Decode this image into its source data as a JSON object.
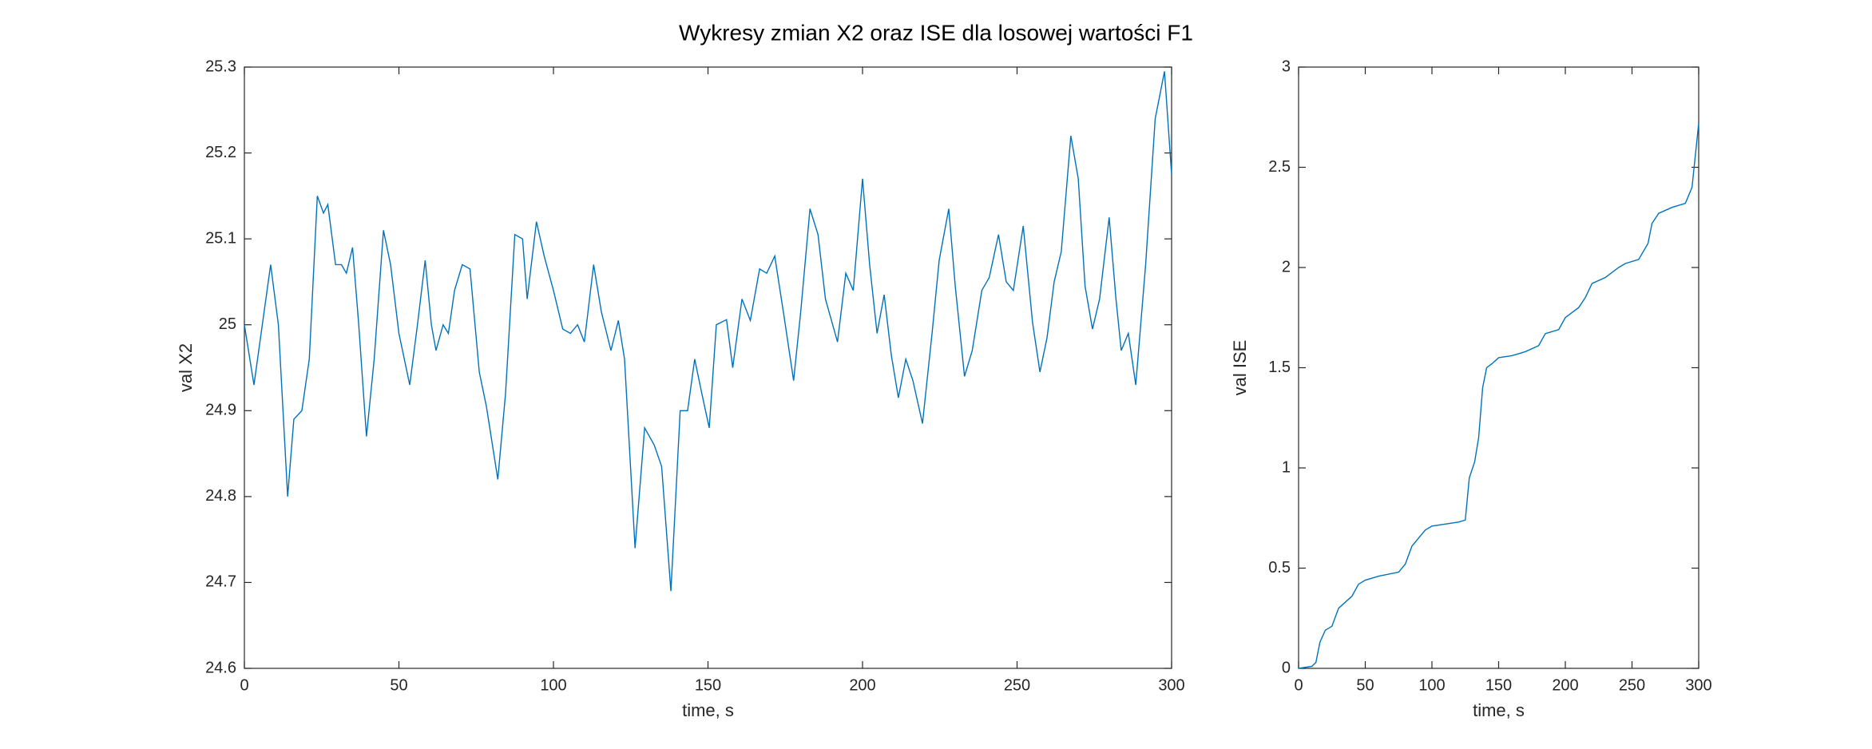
{
  "title": "Wykresy zmian X2 oraz ISE dla losowej wartości F1",
  "chart_data": [
    {
      "type": "line",
      "xlabel": "time, s",
      "ylabel": "val X2",
      "color": "#0072bd",
      "x": [
        0,
        3.1,
        8.5,
        11,
        14,
        16,
        18.6,
        21,
        23.6,
        25.6,
        27,
        29.5,
        31.4,
        33,
        35,
        37,
        39.5,
        42,
        45,
        47.3,
        50,
        53.5,
        56,
        58.5,
        60.5,
        62,
        64.3,
        66,
        68,
        70.5,
        73,
        76,
        78.3,
        82,
        84.5,
        87.5,
        90,
        91.5,
        94.5,
        97,
        100,
        103,
        105.5,
        107.8,
        110,
        113,
        115.5,
        118.6,
        121,
        123,
        126.4,
        129.5,
        132.6,
        135,
        138,
        141,
        143.4,
        145.7,
        148,
        150.4,
        152.7,
        156,
        158,
        161,
        163.7,
        166.7,
        169,
        171.6,
        174.6,
        177.7,
        180,
        183,
        185.6,
        188,
        191.9,
        194.6,
        197,
        200,
        202.3,
        204.7,
        207,
        209.3,
        211.6,
        214,
        216.3,
        219.4,
        222.5,
        224.8,
        227.9,
        230,
        233,
        235.5,
        238.6,
        241,
        244,
        246.5,
        248.8,
        252,
        255,
        257.4,
        259.7,
        262,
        264.3,
        267.4,
        269.8,
        272,
        274.4,
        276.7,
        279.8,
        282,
        283.7,
        286,
        288.4,
        291.6,
        294.7,
        297.7,
        300
      ],
      "values": [
        25.0,
        24.93,
        25.07,
        25.0,
        24.8,
        24.89,
        24.9,
        24.96,
        25.15,
        25.13,
        25.14,
        25.07,
        25.07,
        25.06,
        25.09,
        25.0,
        24.87,
        24.96,
        25.11,
        25.07,
        24.99,
        24.93,
        25.0,
        25.075,
        25.0,
        24.97,
        25.0,
        24.99,
        25.04,
        25.07,
        25.065,
        24.945,
        24.905,
        24.82,
        24.92,
        25.105,
        25.1,
        25.03,
        25.12,
        25.08,
        25.04,
        24.995,
        24.99,
        25.0,
        24.98,
        25.07,
        25.015,
        24.97,
        25.005,
        24.96,
        24.74,
        24.88,
        24.86,
        24.835,
        24.69,
        24.9,
        24.9,
        24.96,
        24.92,
        24.88,
        25.0,
        25.006,
        24.95,
        25.03,
        25.005,
        25.065,
        25.06,
        25.08,
        25.01,
        24.935,
        25.015,
        25.135,
        25.105,
        25.03,
        24.98,
        25.06,
        25.04,
        25.17,
        25.07,
        24.99,
        25.035,
        24.965,
        24.915,
        24.96,
        24.935,
        24.885,
        24.99,
        25.075,
        25.135,
        25.045,
        24.94,
        24.97,
        25.04,
        25.055,
        25.105,
        25.05,
        25.04,
        25.115,
        25.003,
        24.945,
        24.985,
        25.05,
        25.085,
        25.22,
        25.17,
        25.045,
        24.995,
        25.03,
        25.125,
        25.03,
        24.97,
        24.99,
        24.93,
        25.07,
        25.24,
        25.295,
        25.175
      ],
      "xlim": [
        0,
        300
      ],
      "xticks": [
        0,
        50,
        100,
        150,
        200,
        250,
        300
      ],
      "ylim": [
        24.6,
        25.3
      ],
      "yticks": [
        24.6,
        24.7,
        24.8,
        24.9,
        25,
        25.1,
        25.2,
        25.3
      ]
    },
    {
      "type": "line",
      "xlabel": "time, s",
      "ylabel": "val ISE",
      "color": "#0072bd",
      "x": [
        0,
        10,
        13,
        16,
        20,
        25,
        30,
        35,
        40,
        45,
        50,
        60,
        75,
        80,
        85,
        90,
        95,
        100,
        110,
        120,
        125,
        128,
        132,
        135,
        138,
        141,
        145,
        150,
        160,
        170,
        180,
        185,
        195,
        200,
        210,
        215,
        220,
        230,
        240,
        245,
        255,
        262,
        265,
        270,
        280,
        290,
        295,
        300
      ],
      "values": [
        0,
        0.01,
        0.03,
        0.13,
        0.19,
        0.21,
        0.3,
        0.33,
        0.36,
        0.42,
        0.44,
        0.46,
        0.48,
        0.52,
        0.61,
        0.65,
        0.69,
        0.71,
        0.72,
        0.73,
        0.74,
        0.95,
        1.03,
        1.15,
        1.4,
        1.5,
        1.52,
        1.55,
        1.56,
        1.58,
        1.61,
        1.67,
        1.69,
        1.75,
        1.8,
        1.85,
        1.92,
        1.95,
        2.0,
        2.02,
        2.04,
        2.12,
        2.22,
        2.27,
        2.3,
        2.32,
        2.4,
        2.72
      ],
      "xlim": [
        0,
        300
      ],
      "xticks": [
        0,
        50,
        100,
        150,
        200,
        250,
        300
      ],
      "ylim": [
        0,
        3
      ],
      "yticks": [
        0,
        0.5,
        1,
        1.5,
        2,
        2.5,
        3
      ]
    }
  ]
}
